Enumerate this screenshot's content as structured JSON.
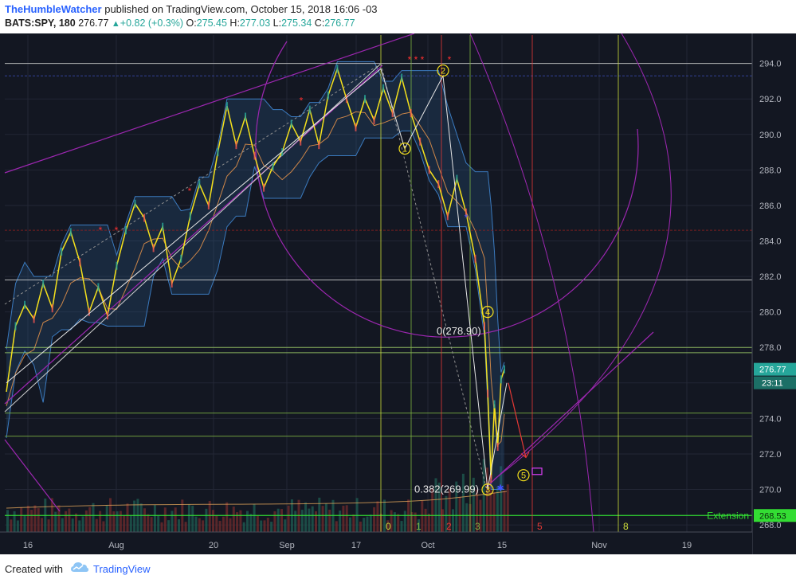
{
  "header": {
    "author": "TheHumbleWatcher",
    "published_text": "published on TradingView.com, October 15, 2018 16:06 -03",
    "symbol": "BATS:SPY, 180",
    "last": "276.77",
    "change": "+0.82 (+0.3%)",
    "o_label": "O:",
    "o_value": "275.45",
    "h_label": "H:",
    "h_value": "277.03",
    "l_label": "L:",
    "l_value": "275.34",
    "c_label": "C:",
    "c_value": "276.77"
  },
  "footer": {
    "created_with": "Created with",
    "brand": "TradingView"
  },
  "colors": {
    "background": "#131722",
    "price_line": "#f5e11c",
    "up_candle": "#26a69a",
    "down_candle": "#ef5350",
    "wave_line": "#e0e0e0",
    "channel": "#9c27b0",
    "fib_green": "#7cb342",
    "cycle_red": "#e53935",
    "cycle_yellow": "#cddc39"
  },
  "chart_data": {
    "type": "line",
    "y_ticks": [
      268,
      270,
      272,
      274,
      276,
      278,
      280,
      282,
      284,
      286,
      288,
      290,
      292,
      294
    ],
    "ylim": [
      267.6,
      295.6
    ],
    "x_ticks": [
      "16",
      "Aug",
      "20",
      "Sep",
      "17",
      "Oct",
      "15",
      "Nov",
      "19"
    ],
    "series": [
      {
        "values": [
          275.5,
          279.2,
          280.4,
          279.6,
          281.6,
          280.2,
          283.4,
          284.5,
          282.8,
          280.0,
          281.4,
          279.8,
          282.6,
          284.6,
          286.1,
          285.3,
          283.6,
          284.8,
          281.6,
          283.0,
          285.4,
          287.2,
          286.0,
          289.0,
          291.6,
          289.4,
          291.0,
          288.8,
          287.0,
          288.2,
          289.0,
          290.6,
          289.6,
          291.4,
          289.4,
          292.2,
          293.7,
          292.0,
          290.4,
          292.0,
          290.8,
          292.6,
          291.2,
          293.2,
          291.2,
          289.6,
          288.0,
          287.2,
          285.4,
          287.5,
          285.6,
          283.0,
          279.2,
          275.4,
          270.6,
          274.8,
          272.4,
          276.2,
          276.77
        ]
      }
    ],
    "price_marker": {
      "value": 276.77,
      "label": "276.77",
      "countdown": "23:11"
    },
    "extension_marker": {
      "value": 268.53,
      "label": "268.53",
      "text": "Extension"
    },
    "fib_labels": [
      {
        "text": "0(278.90)",
        "value": 278.9
      },
      {
        "text": "0.382(269.99)",
        "value": 269.99
      }
    ],
    "wave_labels": [
      "1",
      "2",
      "3",
      "4",
      "5"
    ],
    "cycle_labels": [
      "0",
      "1",
      "2",
      "3",
      "5",
      "8"
    ],
    "horizontal_levels": [
      294.0,
      293.3,
      284.6,
      281.8,
      278.0,
      277.7,
      274.3,
      273.0
    ]
  }
}
